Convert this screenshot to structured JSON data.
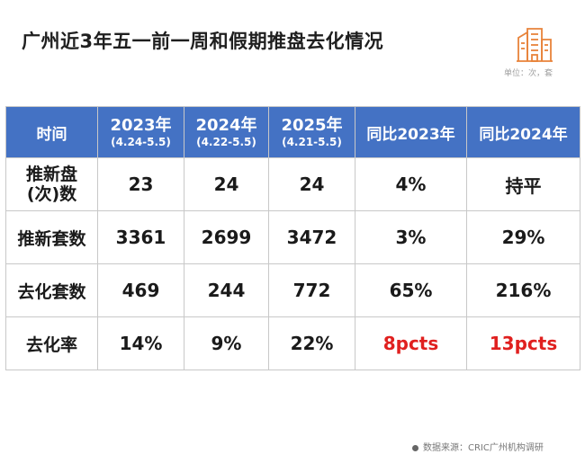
{
  "title": "广州近3年五一前一周和假期推盘去化情况",
  "unit_note": "单位：次，套",
  "logo_icon": "building-logo-icon",
  "brand_color": "#e8833a",
  "header_color": "#4472c4",
  "highlight_color": "#e0201f",
  "table": {
    "headers": {
      "time": "时间",
      "y2023": {
        "year": "2023年",
        "range": "(4.24-5.5)"
      },
      "y2024": {
        "year": "2024年",
        "range": "(4.22-5.5)"
      },
      "y2025": {
        "year": "2025年",
        "range": "(4.21-5.5)"
      },
      "yoy2023": "同比2023年",
      "yoy2024": "同比2024年"
    },
    "rows": [
      {
        "label": "推新盘\n(次)数",
        "label_line1": "推新盘",
        "label_line2": "(次)数",
        "v2023": "23",
        "v2024": "24",
        "v2025": "24",
        "yoy2023": "4%",
        "yoy2024": "持平"
      },
      {
        "label": "推新套数",
        "v2023": "3361",
        "v2024": "2699",
        "v2025": "3472",
        "yoy2023": "3%",
        "yoy2024": "29%"
      },
      {
        "label": "去化套数",
        "v2023": "469",
        "v2024": "244",
        "v2025": "772",
        "yoy2023": "65%",
        "yoy2024": "216%"
      },
      {
        "label": "去化率",
        "v2023": "14%",
        "v2024": "9%",
        "v2025": "22%",
        "yoy2023": "8pcts",
        "yoy2024": "13pcts"
      }
    ]
  },
  "source": "数据来源：CRIC广州机构调研"
}
